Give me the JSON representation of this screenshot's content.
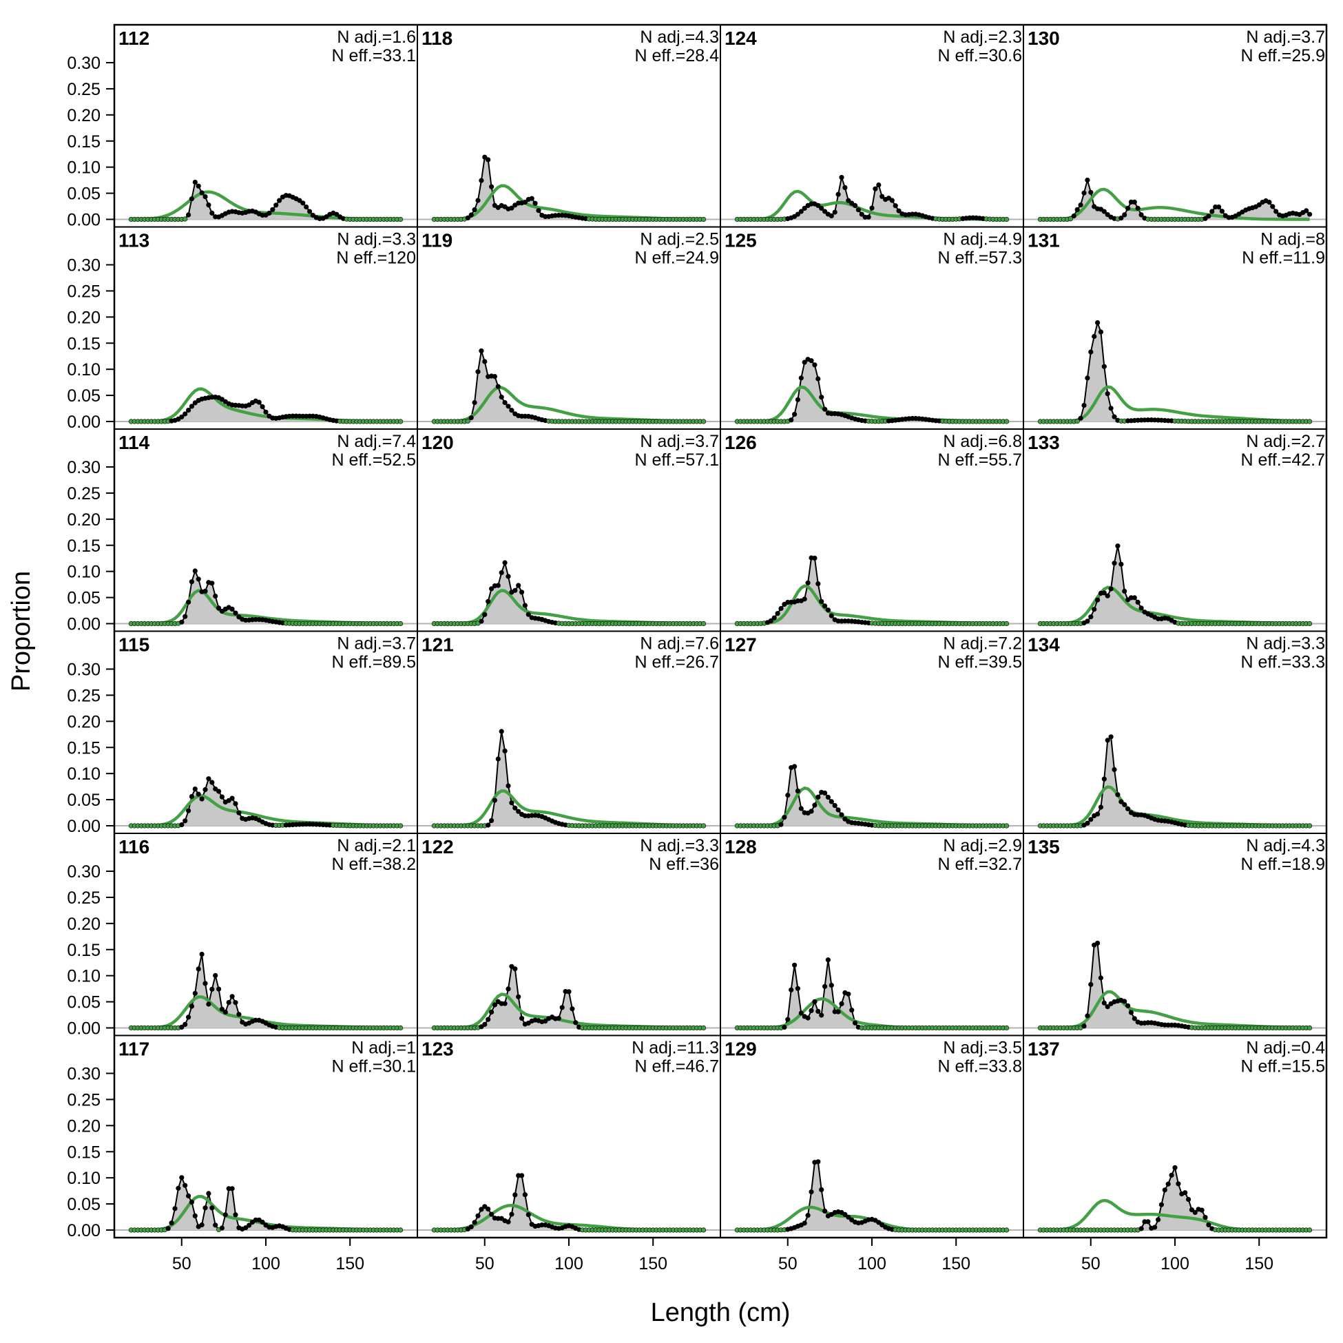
{
  "chart_data": {
    "type": "area",
    "xlabel": "Length (cm)",
    "ylabel": "Proportion",
    "ylim": [
      0,
      0.33
    ],
    "xlim": [
      10,
      190
    ],
    "yticks": [
      "0.00",
      "0.05",
      "0.10",
      "0.15",
      "0.20",
      "0.25",
      "0.30"
    ],
    "xticks": [
      "50",
      "100",
      "150"
    ],
    "grid": false,
    "length_bins": {
      "start": 20,
      "end": 180,
      "step": 2
    },
    "colors": {
      "observed_fill": "#c8c8c8",
      "observed_line": "#000000",
      "expected_line": "#44a044",
      "zero_line": "#b3b3b3"
    },
    "panels": [
      {
        "id": "112",
        "n_adj": "N adj.=1.6",
        "n_eff": "N eff.=33.1",
        "obs_peaks": [
          [
            58,
            0.06,
            2
          ],
          [
            63,
            0.045,
            3
          ],
          [
            80,
            0.015,
            5
          ],
          [
            92,
            0.015,
            4
          ],
          [
            112,
            0.045,
            6
          ],
          [
            122,
            0.02,
            4
          ],
          [
            140,
            0.012,
            3
          ]
        ],
        "exp_peaks": [
          [
            65,
            0.048,
            12
          ],
          [
            100,
            0.012,
            25
          ]
        ]
      },
      {
        "id": "113",
        "n_adj": "N adj.=3.3",
        "n_eff": "N eff.=120",
        "obs_peaks": [
          [
            60,
            0.035,
            6
          ],
          [
            72,
            0.04,
            6
          ],
          [
            85,
            0.025,
            5
          ],
          [
            95,
            0.035,
            4
          ],
          [
            115,
            0.01,
            8
          ],
          [
            130,
            0.008,
            6
          ]
        ],
        "exp_peaks": [
          [
            60,
            0.05,
            8
          ],
          [
            75,
            0.02,
            14
          ],
          [
            110,
            0.006,
            25
          ]
        ]
      },
      {
        "id": "114",
        "n_adj": "N adj.=7.4",
        "n_eff": "N eff.=52.5",
        "obs_peaks": [
          [
            58,
            0.1,
            3
          ],
          [
            67,
            0.08,
            3
          ],
          [
            78,
            0.03,
            4
          ],
          [
            95,
            0.008,
            8
          ]
        ],
        "exp_peaks": [
          [
            60,
            0.055,
            7
          ],
          [
            80,
            0.015,
            18
          ],
          [
            120,
            0.004,
            25
          ]
        ]
      },
      {
        "id": "115",
        "n_adj": "N adj.=3.7",
        "n_eff": "N eff.=89.5",
        "obs_peaks": [
          [
            58,
            0.07,
            3
          ],
          [
            66,
            0.08,
            2.5
          ],
          [
            72,
            0.06,
            3
          ],
          [
            80,
            0.05,
            3
          ],
          [
            92,
            0.015,
            5
          ],
          [
            125,
            0.003,
            10
          ]
        ],
        "exp_peaks": [
          [
            60,
            0.045,
            8
          ],
          [
            80,
            0.025,
            16
          ],
          [
            120,
            0.006,
            25
          ]
        ]
      },
      {
        "id": "116",
        "n_adj": "N adj.=2.1",
        "n_eff": "N eff.=38.2",
        "obs_peaks": [
          [
            58,
            0.05,
            3
          ],
          [
            62,
            0.12,
            2
          ],
          [
            70,
            0.1,
            2.5
          ],
          [
            80,
            0.06,
            3
          ],
          [
            95,
            0.015,
            5
          ]
        ],
        "exp_peaks": [
          [
            60,
            0.05,
            8
          ],
          [
            80,
            0.02,
            16
          ],
          [
            120,
            0.004,
            25
          ]
        ]
      },
      {
        "id": "117",
        "n_adj": "N adj.=1",
        "n_eff": "N eff.=30.1",
        "obs_peaks": [
          [
            50,
            0.1,
            3
          ],
          [
            56,
            0.04,
            2
          ],
          [
            66,
            0.07,
            2
          ],
          [
            79,
            0.09,
            2
          ],
          [
            95,
            0.02,
            4
          ],
          [
            108,
            0.008,
            3
          ]
        ],
        "exp_peaks": [
          [
            60,
            0.055,
            8
          ],
          [
            80,
            0.02,
            16
          ],
          [
            120,
            0.004,
            25
          ]
        ]
      },
      {
        "id": "118",
        "n_adj": "N adj.=4.3",
        "n_eff": "N eff.=28.4",
        "obs_peaks": [
          [
            46,
            0.02,
            3
          ],
          [
            51,
            0.12,
            2.5
          ],
          [
            60,
            0.025,
            3
          ],
          [
            70,
            0.03,
            4
          ],
          [
            78,
            0.035,
            3
          ],
          [
            95,
            0.008,
            8
          ]
        ],
        "exp_peaks": [
          [
            60,
            0.055,
            8
          ],
          [
            80,
            0.02,
            16
          ],
          [
            120,
            0.005,
            25
          ]
        ]
      },
      {
        "id": "119",
        "n_adj": "N adj.=2.5",
        "n_eff": "N eff.=24.9",
        "obs_peaks": [
          [
            48,
            0.13,
            2.5
          ],
          [
            55,
            0.08,
            3
          ],
          [
            62,
            0.03,
            4
          ],
          [
            75,
            0.01,
            6
          ]
        ],
        "exp_peaks": [
          [
            58,
            0.055,
            8
          ],
          [
            80,
            0.025,
            16
          ],
          [
            120,
            0.005,
            25
          ]
        ]
      },
      {
        "id": "120",
        "n_adj": "N adj.=3.7",
        "n_eff": "N eff.=57.1",
        "obs_peaks": [
          [
            55,
            0.07,
            3
          ],
          [
            62,
            0.11,
            2.5
          ],
          [
            70,
            0.07,
            3
          ],
          [
            80,
            0.01,
            6
          ]
        ],
        "exp_peaks": [
          [
            60,
            0.055,
            7
          ],
          [
            80,
            0.018,
            16
          ],
          [
            120,
            0.004,
            25
          ]
        ]
      },
      {
        "id": "121",
        "n_adj": "N adj.=7.6",
        "n_eff": "N eff.=26.7",
        "obs_peaks": [
          [
            60,
            0.17,
            2.5
          ],
          [
            66,
            0.03,
            4
          ],
          [
            80,
            0.02,
            8
          ]
        ],
        "exp_peaks": [
          [
            60,
            0.055,
            7
          ],
          [
            80,
            0.025,
            16
          ],
          [
            120,
            0.006,
            25
          ]
        ]
      },
      {
        "id": "122",
        "n_adj": "N adj.=3.3",
        "n_eff": "N eff.=36",
        "obs_peaks": [
          [
            58,
            0.05,
            4
          ],
          [
            67,
            0.12,
            2.5
          ],
          [
            80,
            0.015,
            4
          ],
          [
            90,
            0.02,
            3
          ],
          [
            99,
            0.075,
            2.5
          ]
        ],
        "exp_peaks": [
          [
            60,
            0.055,
            7
          ],
          [
            80,
            0.02,
            16
          ],
          [
            120,
            0.004,
            25
          ]
        ]
      },
      {
        "id": "123",
        "n_adj": "N adj.=11.3",
        "n_eff": "N eff.=46.7",
        "obs_peaks": [
          [
            50,
            0.045,
            4
          ],
          [
            60,
            0.02,
            3
          ],
          [
            71,
            0.11,
            3
          ],
          [
            85,
            0.01,
            5
          ],
          [
            100,
            0.008,
            3
          ]
        ],
        "exp_peaks": [
          [
            65,
            0.045,
            12
          ],
          [
            100,
            0.01,
            20
          ]
        ]
      },
      {
        "id": "124",
        "n_adj": "N adj.=2.3",
        "n_eff": "N eff.=30.6",
        "obs_peaks": [
          [
            65,
            0.03,
            6
          ],
          [
            82,
            0.07,
            2
          ],
          [
            88,
            0.03,
            4
          ],
          [
            103,
            0.06,
            2
          ],
          [
            110,
            0.04,
            4
          ],
          [
            125,
            0.01,
            6
          ],
          [
            160,
            0.003,
            5
          ]
        ],
        "exp_peaks": [
          [
            55,
            0.05,
            7
          ],
          [
            80,
            0.03,
            12
          ],
          [
            110,
            0.006,
            20
          ]
        ]
      },
      {
        "id": "125",
        "n_adj": "N adj.=4.9",
        "n_eff": "N eff.=57.3",
        "obs_peaks": [
          [
            60,
            0.1,
            3
          ],
          [
            66,
            0.09,
            3
          ],
          [
            78,
            0.015,
            8
          ],
          [
            125,
            0.006,
            8
          ]
        ],
        "exp_peaks": [
          [
            58,
            0.06,
            7
          ],
          [
            80,
            0.015,
            16
          ],
          [
            120,
            0.004,
            25
          ]
        ]
      },
      {
        "id": "126",
        "n_adj": "N adj.=6.8",
        "n_eff": "N eff.=55.7",
        "obs_peaks": [
          [
            50,
            0.04,
            5
          ],
          [
            58,
            0.03,
            3
          ],
          [
            65,
            0.13,
            2.5
          ],
          [
            72,
            0.03,
            3
          ],
          [
            85,
            0.005,
            8
          ]
        ],
        "exp_peaks": [
          [
            60,
            0.065,
            7
          ],
          [
            80,
            0.015,
            16
          ],
          [
            120,
            0.004,
            25
          ]
        ]
      },
      {
        "id": "127",
        "n_adj": "N adj.=7.2",
        "n_eff": "N eff.=39.5",
        "obs_peaks": [
          [
            53,
            0.12,
            2.5
          ],
          [
            60,
            0.02,
            3
          ],
          [
            70,
            0.06,
            4
          ],
          [
            78,
            0.03,
            4
          ],
          [
            90,
            0.005,
            6
          ]
        ],
        "exp_peaks": [
          [
            60,
            0.065,
            7
          ],
          [
            80,
            0.015,
            16
          ],
          [
            120,
            0.004,
            25
          ]
        ]
      },
      {
        "id": "128",
        "n_adj": "N adj.=2.9",
        "n_eff": "N eff.=32.7",
        "obs_peaks": [
          [
            54,
            0.12,
            2
          ],
          [
            60,
            0.02,
            2
          ],
          [
            66,
            0.05,
            2
          ],
          [
            74,
            0.13,
            2
          ],
          [
            80,
            0.02,
            2
          ],
          [
            85,
            0.07,
            2.5
          ]
        ],
        "exp_peaks": [
          [
            70,
            0.055,
            10
          ],
          [
            95,
            0.006,
            12
          ]
        ]
      },
      {
        "id": "129",
        "n_adj": "N adj.=3.5",
        "n_eff": "N eff.=33.8",
        "obs_peaks": [
          [
            60,
            0.01,
            5
          ],
          [
            67,
            0.13,
            2.5
          ],
          [
            80,
            0.035,
            7
          ],
          [
            100,
            0.02,
            5
          ]
        ],
        "exp_peaks": [
          [
            62,
            0.04,
            10
          ],
          [
            90,
            0.025,
            14
          ]
        ]
      },
      {
        "id": "130",
        "n_adj": "N adj.=3.7",
        "n_eff": "N eff.=25.9",
        "obs_peaks": [
          [
            43,
            0.02,
            2
          ],
          [
            48,
            0.07,
            2
          ],
          [
            55,
            0.02,
            4
          ],
          [
            75,
            0.035,
            3
          ],
          [
            125,
            0.025,
            3
          ],
          [
            145,
            0.02,
            6
          ],
          [
            155,
            0.03,
            4
          ],
          [
            170,
            0.012,
            4
          ],
          [
            178,
            0.015,
            2
          ]
        ],
        "exp_peaks": [
          [
            57,
            0.055,
            8
          ],
          [
            90,
            0.022,
            16
          ],
          [
            120,
            0.005,
            15
          ]
        ]
      },
      {
        "id": "131",
        "n_adj": "N adj.=8",
        "n_eff": "N eff.=11.9",
        "obs_peaks": [
          [
            50,
            0.11,
            2.5
          ],
          [
            55,
            0.17,
            2.5
          ],
          [
            60,
            0.03,
            2.5
          ],
          [
            85,
            0.003,
            10
          ]
        ],
        "exp_peaks": [
          [
            60,
            0.06,
            7
          ],
          [
            85,
            0.02,
            16
          ],
          [
            120,
            0.008,
            25
          ]
        ]
      },
      {
        "id": "133",
        "n_adj": "N adj.=2.7",
        "n_eff": "N eff.=42.7",
        "obs_peaks": [
          [
            57,
            0.06,
            4
          ],
          [
            66,
            0.14,
            2.5
          ],
          [
            75,
            0.05,
            4
          ],
          [
            85,
            0.015,
            4
          ],
          [
            95,
            0.01,
            3
          ]
        ],
        "exp_peaks": [
          [
            60,
            0.06,
            8
          ],
          [
            80,
            0.02,
            16
          ],
          [
            120,
            0.004,
            25
          ]
        ]
      },
      {
        "id": "134",
        "n_adj": "N adj.=3.3",
        "n_eff": "N eff.=33.3",
        "obs_peaks": [
          [
            53,
            0.02,
            3
          ],
          [
            61,
            0.17,
            2.5
          ],
          [
            68,
            0.04,
            4
          ],
          [
            80,
            0.02,
            6
          ],
          [
            95,
            0.008,
            6
          ]
        ],
        "exp_peaks": [
          [
            60,
            0.065,
            7
          ],
          [
            80,
            0.02,
            16
          ],
          [
            120,
            0.004,
            25
          ]
        ]
      },
      {
        "id": "135",
        "n_adj": "N adj.=4.3",
        "n_eff": "N eff.=18.9",
        "obs_peaks": [
          [
            53,
            0.17,
            2.5
          ],
          [
            62,
            0.04,
            4
          ],
          [
            70,
            0.045,
            4
          ],
          [
            85,
            0.01,
            6
          ],
          [
            100,
            0.005,
            5
          ]
        ],
        "exp_peaks": [
          [
            60,
            0.055,
            7
          ],
          [
            80,
            0.03,
            16
          ],
          [
            120,
            0.006,
            25
          ]
        ]
      },
      {
        "id": "137",
        "n_adj": "N adj.=0.4",
        "n_eff": "N eff.=15.5",
        "obs_peaks": [
          [
            83,
            0.02,
            1.5
          ],
          [
            95,
            0.08,
            3
          ],
          [
            100,
            0.09,
            2
          ],
          [
            106,
            0.07,
            3
          ],
          [
            115,
            0.04,
            3
          ]
        ],
        "exp_peaks": [
          [
            57,
            0.045,
            8
          ],
          [
            85,
            0.03,
            20
          ],
          [
            115,
            0.01,
            10
          ]
        ]
      }
    ]
  }
}
